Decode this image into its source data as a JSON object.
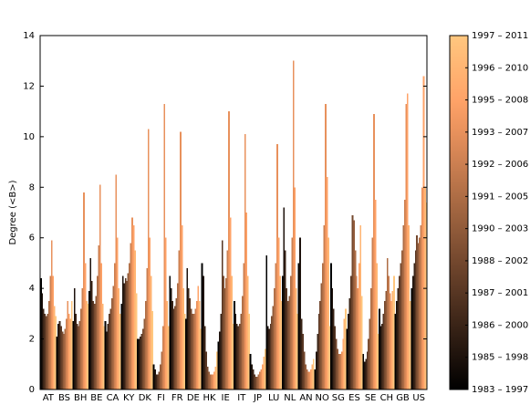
{
  "chart_data": {
    "type": "bar",
    "ylabel": "Degree (<B>)",
    "ylim": [
      0,
      14
    ],
    "yticks": [
      0,
      2,
      4,
      6,
      8,
      10,
      12,
      14
    ],
    "categories": [
      "AT",
      "BS",
      "BH",
      "BE",
      "CA",
      "KY",
      "DK",
      "FI",
      "FR",
      "DE",
      "HK",
      "IE",
      "IT",
      "JP",
      "LU",
      "NL",
      "AN",
      "NO",
      "SG",
      "ES",
      "SE",
      "CH",
      "GB",
      "US"
    ],
    "windows": [
      "1983 – 1997",
      "1985 – 1998",
      "1986 – 2000",
      "1987 – 2001",
      "1988 – 2002",
      "1990 – 2003",
      "1991 – 2005",
      "1992 – 2006",
      "1993 – 2007",
      "1995 – 2008",
      "1996 – 2010",
      "1997 – 2011"
    ],
    "colors": [
      "#000000",
      "#1d120c",
      "#3a2417",
      "#573623",
      "#74482e",
      "#915b3a",
      "#ae6d45",
      "#cb7f51",
      "#e8915c",
      "#ffa368",
      "#ffb573",
      "#ffc77f"
    ],
    "values": [
      [
        4.4,
        3.8,
        3.2,
        3.0,
        2.9,
        3.0,
        3.5,
        4.5,
        5.9,
        4.5,
        3.3,
        2.9
      ],
      [
        2.1,
        2.6,
        2.7,
        2.5,
        2.3,
        2.2,
        2.4,
        2.8,
        3.5,
        3.0,
        2.8,
        3.5
      ],
      [
        2.7,
        4.0,
        3.0,
        2.6,
        2.5,
        2.7,
        3.2,
        4.0,
        7.8,
        5.0,
        3.5,
        3.4
      ],
      [
        3.9,
        5.2,
        4.3,
        3.5,
        3.4,
        3.7,
        4.5,
        5.7,
        8.1,
        5.0,
        3.4,
        2.5
      ],
      [
        2.7,
        2.3,
        2.6,
        3.0,
        3.2,
        3.6,
        4.1,
        5.0,
        8.5,
        6.0,
        4.0,
        3.0
      ],
      [
        3.4,
        4.5,
        4.2,
        4.4,
        4.3,
        4.6,
        5.0,
        5.8,
        6.8,
        6.5,
        5.5,
        3.8
      ],
      [
        2.0,
        2.0,
        2.1,
        2.2,
        2.4,
        2.8,
        3.5,
        4.8,
        10.3,
        6.0,
        4.5,
        3.1
      ],
      [
        1.0,
        0.8,
        0.6,
        0.6,
        0.7,
        1.0,
        1.5,
        2.5,
        11.3,
        6.0,
        3.5,
        2.5
      ],
      [
        4.5,
        4.0,
        3.5,
        3.2,
        3.3,
        3.6,
        4.2,
        5.5,
        10.2,
        6.5,
        4.0,
        3.0
      ],
      [
        2.8,
        4.8,
        4.0,
        3.6,
        3.2,
        3.0,
        3.0,
        3.2,
        3.5,
        4.1,
        3.5,
        2.4
      ],
      [
        5.0,
        4.5,
        2.5,
        1.5,
        0.9,
        0.7,
        0.6,
        0.6,
        0.6,
        0.7,
        0.9,
        1.5
      ],
      [
        1.9,
        2.3,
        3.0,
        5.9,
        4.5,
        4.0,
        4.4,
        5.5,
        11.0,
        6.8,
        4.5,
        2.6
      ],
      [
        3.5,
        3.0,
        2.6,
        2.5,
        2.6,
        3.0,
        3.7,
        5.0,
        10.1,
        7.0,
        4.5,
        3.0
      ],
      [
        1.4,
        1.0,
        0.8,
        0.6,
        0.5,
        0.5,
        0.6,
        0.7,
        0.8,
        1.0,
        1.3,
        1.6
      ],
      [
        5.3,
        2.5,
        2.4,
        2.6,
        2.9,
        3.3,
        4.0,
        5.0,
        9.7,
        6.0,
        4.5,
        3.5
      ],
      [
        4.5,
        7.2,
        5.5,
        4.0,
        3.5,
        3.7,
        4.5,
        6.0,
        13.0,
        8.0,
        4.0,
        3.0
      ],
      [
        5.0,
        6.0,
        2.8,
        2.2,
        1.5,
        1.0,
        0.8,
        0.7,
        0.7,
        0.8,
        1.0,
        1.2
      ],
      [
        0.8,
        1.5,
        2.2,
        3.0,
        3.5,
        4.2,
        5.0,
        6.5,
        11.3,
        8.4,
        6.0,
        2.5
      ],
      [
        5.0,
        4.0,
        3.2,
        2.5,
        2.0,
        1.6,
        1.4,
        1.4,
        1.5,
        2.0,
        2.8,
        3.2
      ],
      [
        2.4,
        3.0,
        3.6,
        4.5,
        6.9,
        6.7,
        5.5,
        4.5,
        4.0,
        5.0,
        6.5,
        3.7
      ],
      [
        1.4,
        1.1,
        1.2,
        1.5,
        2.0,
        2.8,
        4.0,
        6.0,
        10.9,
        7.5,
        5.0,
        2.2
      ],
      [
        3.2,
        2.5,
        2.6,
        3.0,
        3.5,
        3.9,
        5.2,
        4.5,
        3.8,
        3.5,
        3.9,
        4.5
      ],
      [
        3.0,
        3.5,
        4.0,
        4.5,
        5.0,
        5.5,
        6.5,
        7.5,
        11.3,
        11.7,
        6.5,
        3.5
      ],
      [
        4.0,
        4.5,
        5.0,
        5.5,
        6.1,
        5.8,
        6.0,
        6.5,
        8.0,
        12.4,
        8.0,
        7.4
      ]
    ]
  }
}
